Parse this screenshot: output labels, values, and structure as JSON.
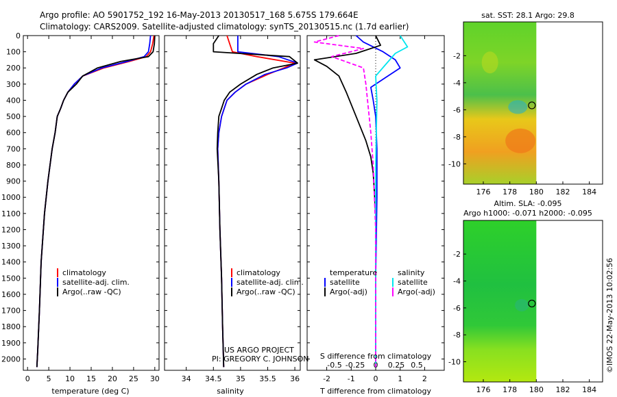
{
  "header": {
    "line1": "Argo profile: AO 5901752_192 16-May-2013 20130517_168 5.675S 179.664E",
    "line2": "Climatology: CARS2009. Satellite-adjusted climatology: synTS_20130515.nc (1.7d earlier)"
  },
  "colors": {
    "climatology": "#ff0000",
    "satellite": "#0000ff",
    "argo": "#000000",
    "cyan": "#00e5ee",
    "magenta": "#ff00ff"
  },
  "chart_data": [
    {
      "type": "line",
      "id": "temperature",
      "xlabel": "temperature (deg C)",
      "xlim": [
        -1,
        31
      ],
      "ylim": [
        2070,
        0
      ],
      "xticks": [
        0,
        5,
        10,
        15,
        20,
        25,
        30
      ],
      "xtick_labels": [
        "0",
        "5",
        "10",
        "15",
        "20",
        "25",
        "30"
      ],
      "yticks": [
        0,
        100,
        200,
        300,
        400,
        500,
        600,
        700,
        800,
        900,
        1000,
        1100,
        1200,
        1300,
        1400,
        1500,
        1600,
        1700,
        1800,
        1900,
        2000
      ],
      "ytick_labels": [
        "0",
        "100",
        "200",
        "300",
        "400",
        "500",
        "600",
        "700",
        "800",
        "900",
        "1000",
        "1100",
        "1200",
        "1300",
        "1400",
        "1500",
        "1600",
        "1700",
        "1800",
        "1900",
        "2000"
      ],
      "legend": [
        "climatology",
        "satellite-adj. clim.",
        "Argo(..raw -QC)"
      ],
      "series": [
        {
          "name": "climatology",
          "color": "#ff0000",
          "x": [
            29.8,
            29.5,
            29.0,
            28.0,
            24.0,
            18.0,
            13.0,
            11.0,
            9.5,
            8.5,
            7.8,
            7.0,
            6.5,
            5.8,
            4.8,
            4.0,
            3.2,
            2.8,
            2.4,
            2.2
          ],
          "y": [
            0,
            50,
            100,
            130,
            160,
            200,
            250,
            300,
            350,
            400,
            450,
            500,
            600,
            700,
            900,
            1100,
            1400,
            1700,
            1950,
            2050
          ]
        },
        {
          "name": "satellite-adj. clim.",
          "color": "#0000ff",
          "x": [
            29.0,
            28.8,
            28.5,
            27.5,
            23.5,
            17.5,
            13.0,
            11.0,
            9.5,
            8.5,
            7.8,
            7.0,
            6.5,
            5.8,
            4.8,
            4.0,
            3.2,
            2.8,
            2.4,
            2.2
          ],
          "y": [
            0,
            50,
            100,
            130,
            160,
            200,
            250,
            300,
            350,
            400,
            450,
            500,
            600,
            700,
            900,
            1100,
            1400,
            1700,
            1950,
            2050
          ]
        },
        {
          "name": "Argo(..raw -QC)",
          "color": "#000000",
          "x": [
            30.0,
            29.9,
            29.6,
            28.5,
            22.0,
            16.5,
            13.0,
            11.5,
            9.5,
            8.5,
            7.8,
            7.0,
            6.5,
            5.8,
            4.8,
            4.0,
            3.2,
            2.8,
            2.4,
            2.2
          ],
          "y": [
            0,
            50,
            100,
            130,
            160,
            200,
            250,
            300,
            350,
            400,
            450,
            500,
            600,
            700,
            900,
            1100,
            1400,
            1700,
            1950,
            2050
          ]
        }
      ]
    },
    {
      "type": "line",
      "id": "salinity",
      "xlabel": "salinity",
      "xlim": [
        33.6,
        36.1
      ],
      "ylim": [
        2070,
        0
      ],
      "xticks": [
        34,
        34.5,
        35,
        35.5,
        36
      ],
      "xtick_labels": [
        "34",
        "34.5",
        "35",
        "35.5",
        "36"
      ],
      "legend": [
        "climatology",
        "satellite-adj. clim.",
        "Argo(..raw -QC)"
      ],
      "annotation_line1": "US ARGO PROJECT",
      "annotation_line2": "PI: GREGORY C. JOHNSON",
      "series": [
        {
          "name": "climatology",
          "color": "#ff0000",
          "x": [
            34.75,
            34.8,
            34.85,
            35.3,
            36.0,
            35.8,
            35.5,
            35.1,
            34.9,
            34.75,
            34.7,
            34.65,
            34.6,
            34.58,
            34.6,
            34.62,
            34.65,
            34.67,
            34.69
          ],
          "y": [
            0,
            50,
            100,
            130,
            170,
            200,
            240,
            300,
            350,
            400,
            450,
            500,
            600,
            700,
            900,
            1200,
            1500,
            1800,
            2050
          ]
        },
        {
          "name": "satellite-adj. clim.",
          "color": "#0000ff",
          "x": [
            34.95,
            34.95,
            34.95,
            35.7,
            36.05,
            35.85,
            35.45,
            35.1,
            34.9,
            34.75,
            34.7,
            34.65,
            34.6,
            34.58,
            34.6,
            34.62,
            34.65,
            34.67,
            34.69
          ],
          "y": [
            0,
            50,
            100,
            130,
            170,
            200,
            240,
            300,
            350,
            400,
            450,
            500,
            600,
            700,
            900,
            1200,
            1500,
            1800,
            2050
          ]
        },
        {
          "name": "Argo(..raw -QC)",
          "color": "#000000",
          "x": [
            34.6,
            34.5,
            34.5,
            35.9,
            36.05,
            35.6,
            35.3,
            35.0,
            34.8,
            34.7,
            34.65,
            34.6,
            34.58,
            34.57,
            34.6,
            34.62,
            34.65,
            34.67,
            34.69
          ],
          "y": [
            0,
            50,
            100,
            130,
            170,
            200,
            240,
            300,
            350,
            400,
            450,
            500,
            600,
            700,
            900,
            1200,
            1500,
            1800,
            2050
          ]
        }
      ]
    },
    {
      "type": "line",
      "id": "difference",
      "xlabel": "T difference from climatology",
      "x2label": "S difference from climatology",
      "xlim": [
        -2.8,
        2.8
      ],
      "ylim": [
        2070,
        0
      ],
      "xticks": [
        -2,
        -1,
        0,
        1,
        2
      ],
      "xtick_labels": [
        "-2",
        "-1",
        "0",
        "1",
        "2"
      ],
      "x2ticks": [
        -0.5,
        -0.25,
        0,
        0.25,
        0.5
      ],
      "x2tick_labels": [
        "-0.5",
        "-0.25",
        "0",
        "0.25",
        "0.5"
      ],
      "legend_left_title": "temperature",
      "legend_right_title": "salinity",
      "legend_left": [
        "satellite",
        "Argo(-adj)"
      ],
      "legend_right": [
        "satellite",
        "Argo(-adj)"
      ],
      "series": [
        {
          "name": "temperature satellite",
          "color": "#0000ff",
          "x": [
            -0.8,
            -0.5,
            0.3,
            0.8,
            1.0,
            0.4,
            -0.2,
            -0.1,
            0.0,
            0.05,
            0.05,
            0.0,
            0.0
          ],
          "y": [
            0,
            40,
            100,
            150,
            200,
            260,
            320,
            400,
            500,
            700,
            1000,
            1500,
            2050
          ]
        },
        {
          "name": "temperature Argo(-adj)",
          "color": "#000000",
          "x": [
            0.0,
            0.2,
            -0.8,
            -2.5,
            -2.0,
            -1.5,
            -1.2,
            -0.8,
            -0.4,
            -0.2,
            -0.1,
            0.0,
            0.0,
            0.0
          ],
          "y": [
            0,
            60,
            110,
            150,
            190,
            250,
            350,
            500,
            650,
            750,
            850,
            1100,
            1500,
            2050
          ]
        },
        {
          "name": "salinity satellite",
          "color": "#00e5ee",
          "x": [
            1.0,
            1.3,
            0.8,
            0.4,
            0.0,
            0.05,
            0.0,
            0.0,
            0.0
          ],
          "y": [
            0,
            70,
            110,
            180,
            250,
            400,
            800,
            1500,
            2050
          ]
        },
        {
          "name": "salinity Argo(-adj)",
          "color": "#ff00ff",
          "x": [
            -1.5,
            -2.5,
            -0.5,
            -1.8,
            -0.5,
            -0.4,
            -0.3,
            -0.2,
            -0.1,
            0.0,
            0.0
          ],
          "y": [
            0,
            40,
            80,
            130,
            200,
            300,
            450,
            600,
            800,
            1200,
            2050
          ],
          "dashed": true
        }
      ]
    },
    {
      "type": "heatmap",
      "id": "sst-map",
      "title": "sat. SST: 28.1  Argo: 29.8",
      "xlim": [
        174.5,
        185
      ],
      "ylim": [
        -11.5,
        0.5
      ],
      "xticks": [
        176,
        178,
        180,
        182,
        184
      ],
      "xtick_labels": [
        "176",
        "178",
        "180",
        "182",
        "184"
      ],
      "yticks": [
        -2,
        -4,
        -6,
        -8,
        -10
      ],
      "ytick_labels": [
        "-2",
        "-4",
        "-6",
        "-8",
        "-10"
      ],
      "data_extent_lon": [
        174.5,
        180
      ],
      "marker": {
        "lon": 179.664,
        "lat": -5.675
      }
    },
    {
      "type": "heatmap",
      "id": "sla-map",
      "title": "Altim. SLA: -0.095",
      "subtitle": "Argo h1000: -0.071 h2000: -0.095",
      "xlim": [
        174.5,
        185
      ],
      "ylim": [
        -11.5,
        0.5
      ],
      "xticks": [
        176,
        178,
        180,
        182,
        184
      ],
      "xtick_labels": [
        "176",
        "178",
        "180",
        "182",
        "184"
      ],
      "yticks": [
        -2,
        -4,
        -6,
        -8,
        -10
      ],
      "ytick_labels": [
        "-2",
        "-4",
        "-6",
        "-8",
        "-10"
      ],
      "data_extent_lon": [
        174.5,
        180
      ],
      "marker": {
        "lon": 179.664,
        "lat": -5.675
      }
    }
  ],
  "footer": {
    "side_label": "©IMOS 22-May-2013 10:02:56"
  }
}
